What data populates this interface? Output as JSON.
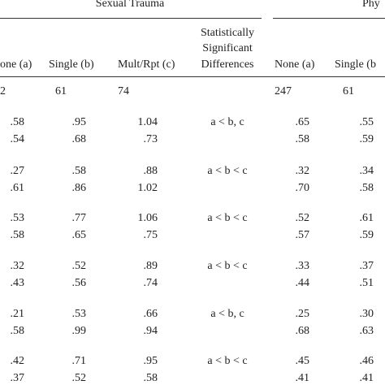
{
  "header": {
    "group1": "Sexual Trauma",
    "group2": "Phy",
    "sig_line1": "Statistically",
    "sig_line2": "Significant",
    "sig_line3": "Differences",
    "columns": [
      "one (a)",
      "Single (b)",
      "Mult/Rpt (c)",
      "None (a)",
      "Single (b"
    ]
  },
  "counts": [
    "2",
    "61",
    "74",
    "247",
    "61"
  ],
  "blocks": [
    {
      "sig": "a < b, c",
      "rows": [
        [
          ".58",
          ".95",
          "1.04",
          ".65",
          ".55"
        ],
        [
          ".54",
          ".68",
          ".73",
          ".58",
          ".59"
        ]
      ]
    },
    {
      "sig": "a < b < c",
      "rows": [
        [
          ".27",
          ".58",
          ".88",
          ".32",
          ".34"
        ],
        [
          ".61",
          ".86",
          "1.02",
          ".70",
          ".58"
        ]
      ]
    },
    {
      "sig": "a < b < c",
      "rows": [
        [
          ".53",
          ".77",
          "1.06",
          ".52",
          ".61"
        ],
        [
          ".58",
          ".65",
          ".75",
          ".57",
          ".59"
        ]
      ]
    },
    {
      "sig": "a < b < c",
      "rows": [
        [
          ".32",
          ".52",
          ".89",
          ".33",
          ".37"
        ],
        [
          ".43",
          ".56",
          ".74",
          ".44",
          ".51"
        ]
      ]
    },
    {
      "sig": "a < b, c",
      "rows": [
        [
          ".21",
          ".53",
          ".66",
          ".25",
          ".30"
        ],
        [
          ".58",
          ".99",
          ".94",
          ".68",
          ".63"
        ]
      ]
    },
    {
      "sig": "a < b < c",
      "rows": [
        [
          ".42",
          ".71",
          ".95",
          ".45",
          ".46"
        ],
        [
          ".37",
          ".52",
          ".58",
          ".41",
          ".41"
        ]
      ]
    }
  ]
}
